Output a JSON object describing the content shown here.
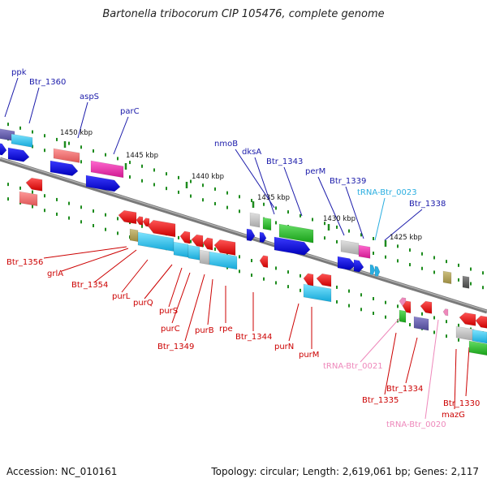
{
  "title": "Bartonella tribocorum CIP 105476, complete genome",
  "footer": {
    "accession": "Accession: NC_010161",
    "summary": "Topology: circular; Length: 2,619,061 bp; Genes: 2,117"
  },
  "colors": {
    "backbone": "#8a8a8a",
    "tick": "#1e8c1e",
    "forward_label": "#1a1aaa",
    "reverse_label": "#cc0000",
    "trna_forward_label": "#2aaee0",
    "trna_reverse_label": "#ee88bb"
  },
  "scale_labels": [
    "1450 kbp",
    "1445 kbp",
    "1440 kbp",
    "1435 kbp",
    "1430 kbp",
    "1425 kbp"
  ],
  "forward_labels": [
    "ppk",
    "Btr_1360",
    "aspS",
    "parC",
    "nmoB",
    "dksA",
    "Btr_1343",
    "perM",
    "Btr_1339",
    "Btr_1338"
  ],
  "forward_trna_labels": [
    "tRNA-Btr_0023"
  ],
  "reverse_labels": [
    "Btr_1356",
    "grlA",
    "Btr_1354",
    "purL",
    "purQ",
    "purS",
    "purC",
    "Btr_1349",
    "purB",
    "rpe",
    "Btr_1344",
    "purN",
    "purM",
    "Btr_1335",
    "Btr_1334",
    "mazG",
    "Btr_1330"
  ],
  "reverse_trna_labels": [
    "tRNA-Btr_0021",
    "tRNA-Btr_0020"
  ]
}
